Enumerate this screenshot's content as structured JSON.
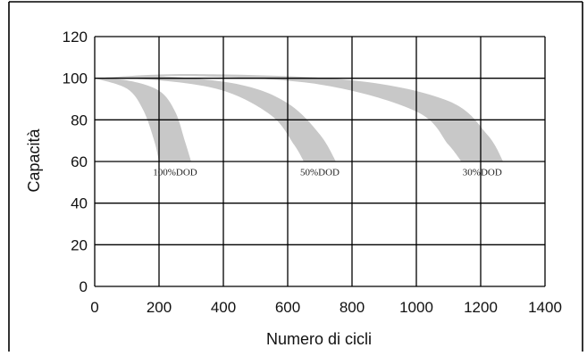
{
  "chart_data": {
    "type": "area",
    "title": "",
    "xlabel": "Numero di cicli",
    "ylabel": "Capacità",
    "xlim": [
      0,
      1400
    ],
    "ylim": [
      0,
      120
    ],
    "x_ticks": [
      0,
      200,
      400,
      600,
      800,
      1000,
      1200,
      1400
    ],
    "y_ticks": [
      0,
      20,
      40,
      60,
      80,
      100,
      120
    ],
    "x_tick_labels": [
      "0",
      "200",
      "400",
      "600",
      "800",
      "1000",
      "1200",
      "1400"
    ],
    "y_tick_labels": [
      "0",
      "20",
      "40",
      "60",
      "80",
      "100",
      "120"
    ],
    "grid": true,
    "legend": "none",
    "band_color": "#c8c8c8",
    "series": [
      {
        "label": "100%DOD",
        "lower": {
          "x": [
            0,
            100,
            150,
            185,
            200
          ],
          "y": [
            100,
            95,
            85,
            70,
            60
          ]
        },
        "upper": {
          "x": [
            0,
            100,
            200,
            250,
            280,
            300
          ],
          "y": [
            100,
            99,
            94,
            84,
            70,
            60
          ]
        }
      },
      {
        "label": "50%DOD",
        "lower": {
          "x": [
            0,
            200,
            400,
            550,
            620,
            650
          ],
          "y": [
            100,
            99,
            94,
            82,
            68,
            60
          ]
        },
        "upper": {
          "x": [
            0,
            200,
            450,
            600,
            700,
            750
          ],
          "y": [
            100,
            101,
            97,
            88,
            73,
            60
          ]
        }
      },
      {
        "label": "30%DOD",
        "lower": {
          "x": [
            0,
            300,
            700,
            1000,
            1100,
            1140
          ],
          "y": [
            100,
            101,
            97,
            84,
            68,
            60
          ]
        },
        "upper": {
          "x": [
            0,
            300,
            800,
            1100,
            1220,
            1270
          ],
          "y": [
            100,
            102,
            99,
            89,
            73,
            60
          ]
        }
      }
    ]
  }
}
